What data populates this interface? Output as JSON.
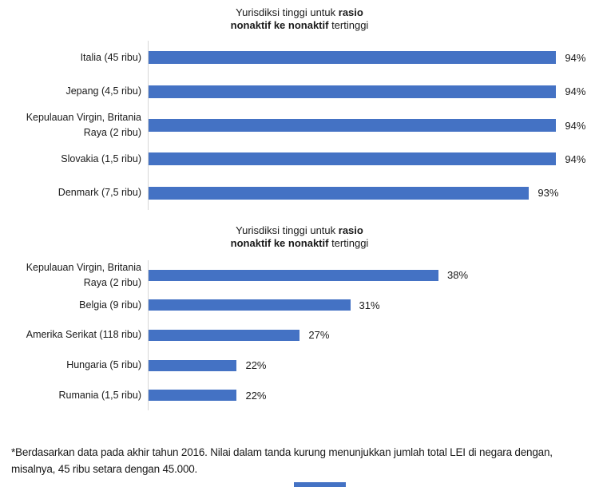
{
  "page": {
    "background": "#FFFFFF"
  },
  "chart_data": [
    {
      "type": "bar",
      "orientation": "horizontal",
      "title": "Yurisdiksi tinggi untuk rasio nonaktif ke nonaktif tertinggi",
      "title_segments": {
        "line1_normal": "Yurisdiksi tinggi untuk ",
        "line1_bold": "rasio",
        "line2_bold": "nonaktif ke nonaktif",
        "line2_normal": " tertinggi"
      },
      "categories": [
        "Italia (45 ribu)",
        "Jepang (4,5 ribu)",
        "Kepulauan Virgin, Britania Raya (2 ribu)",
        "Slovakia (1,5 ribu)",
        "Denmark (7,5 ribu)"
      ],
      "categories_lines": [
        [
          "Italia (45 ribu)",
          ""
        ],
        [
          "Jepang (4,5 ribu)",
          ""
        ],
        [
          "Kepulauan Virgin, Britania",
          "Raya (2 ribu)"
        ],
        [
          "Slovakia (1,5 ribu)",
          ""
        ],
        [
          "Denmark (7,5 ribu)",
          ""
        ]
      ],
      "values": [
        94,
        94,
        94,
        94,
        93
      ],
      "value_labels": [
        "94%",
        "94%",
        "94%",
        "94%",
        "93%"
      ],
      "unit": "%",
      "xlim": [
        79,
        94.4
      ],
      "bar_color": "#4472C4",
      "axis_color": "#D6D6D6",
      "grid": false,
      "legend": false
    },
    {
      "type": "bar",
      "orientation": "horizontal",
      "title": "Yurisdiksi tinggi untuk rasio nonaktif ke nonaktif tertinggi",
      "title_segments": {
        "line1_normal": "Yurisdiksi tinggi untuk ",
        "line1_bold": "rasio",
        "line2_bold": "nonaktif ke nonaktif",
        "line2_normal": " tertinggi"
      },
      "categories": [
        "Kepulauan Virgin, Britania Raya (2 ribu)",
        "Belgia (9 ribu)",
        "Amerika Serikat (118 ribu)",
        "Hungaria (5 ribu)",
        "Rumania (1,5 ribu)"
      ],
      "categories_lines": [
        [
          "Kepulauan Virgin, Britania",
          "Raya (2 ribu)"
        ],
        [
          "Belgia (9 ribu)",
          ""
        ],
        [
          "Amerika Serikat (118 ribu)",
          ""
        ],
        [
          "Hungaria (5 ribu)",
          ""
        ],
        [
          "Rumania (1,5 ribu)",
          ""
        ]
      ],
      "values": [
        38,
        31,
        27,
        22,
        22
      ],
      "value_labels": [
        "38%",
        "31%",
        "27%",
        "22%",
        "22%"
      ],
      "unit": "%",
      "xlim": [
        15,
        48.2
      ],
      "bar_color": "#4472C4",
      "axis_color": "#D6D6D6",
      "grid": false,
      "legend": false
    }
  ],
  "footnote": "*Berdasarkan data pada akhir tahun 2016. Nilai dalam tanda kurung menunjukkan jumlah total LEI di negara dengan,\nmisalnya, 45 ribu setara dengan 45.000."
}
